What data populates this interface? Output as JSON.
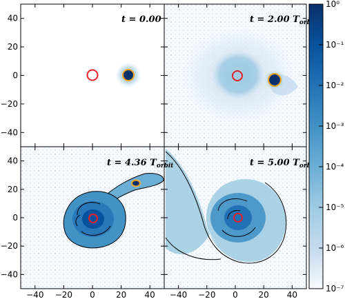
{
  "chart_data": {
    "type": "heatmap",
    "grid": "2x2 panels with shared axes and shared colorbar",
    "xlim": [
      -50,
      50
    ],
    "ylim": [
      -50,
      50
    ],
    "x_ticks": [
      "−40",
      "−20",
      "0",
      "20",
      "40"
    ],
    "y_ticks": [
      "40",
      "20",
      "0",
      "−20",
      "−40"
    ],
    "colorbar": {
      "scale": "log",
      "range": [
        1e-07,
        1
      ],
      "tick_labels": [
        "10⁰",
        "10⁻¹",
        "10⁻²",
        "10⁻³",
        "10⁻⁴",
        "10⁻⁵",
        "10⁻⁶",
        "10⁻⁷"
      ],
      "colormap": "Blues",
      "position": "right"
    },
    "panels": [
      {
        "id": "top-left",
        "label": "t = 0.00",
        "central_object": [
          0,
          0
        ],
        "companion": [
          25,
          0
        ]
      },
      {
        "id": "top-right",
        "label": "t = 2.00 T_orbit",
        "central_object": [
          0,
          0
        ],
        "companion": [
          30,
          -4
        ]
      },
      {
        "id": "bottom-left",
        "label": "t = 4.36 T_orbit",
        "central_object": [
          0,
          0
        ],
        "companion": [
          17,
          20
        ]
      },
      {
        "id": "bottom-right",
        "label": "t = 5.00 T_orbit",
        "central_object": [
          0,
          0
        ]
      }
    ],
    "colors": {
      "circle_marker": "#e8202a",
      "contour": "#000000",
      "orange_ring": "#f5a623",
      "dense_core": "#08306b"
    }
  },
  "labels": {
    "tl_t": "t = 0.00",
    "tr_t": "t = 2.00 ",
    "tr_sub": "orbit",
    "bl_t": "t = 4.36 ",
    "bl_sub": "orbit",
    "br_t": "t = 5.00 ",
    "br_sub": "orbit",
    "T": "T"
  }
}
